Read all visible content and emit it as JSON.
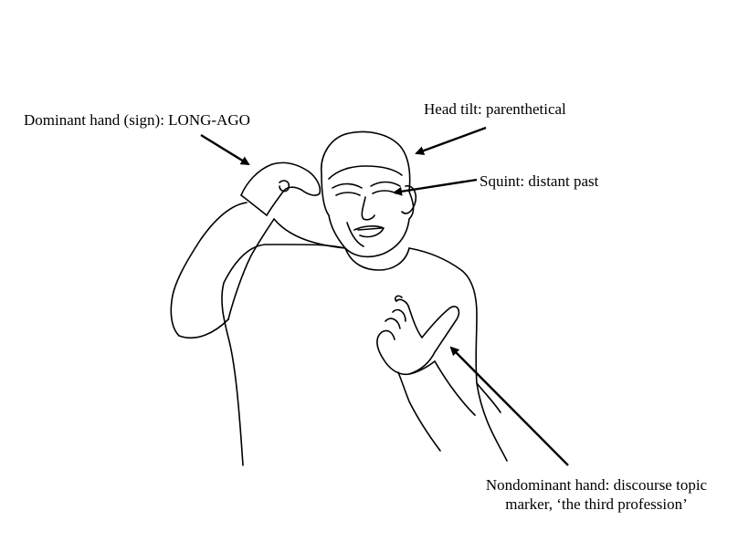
{
  "annotations": {
    "dominant_hand": "Dominant hand (sign): LONG-AGO",
    "head_tilt": "Head tilt: parenthetical",
    "squint": "Squint: distant past",
    "nondominant_hand_line1": "Nondominant hand: discourse topic",
    "nondominant_hand_line2": "marker, ‘the third profession’"
  },
  "colors": {
    "ink": "#000000",
    "background": "#ffffff"
  }
}
